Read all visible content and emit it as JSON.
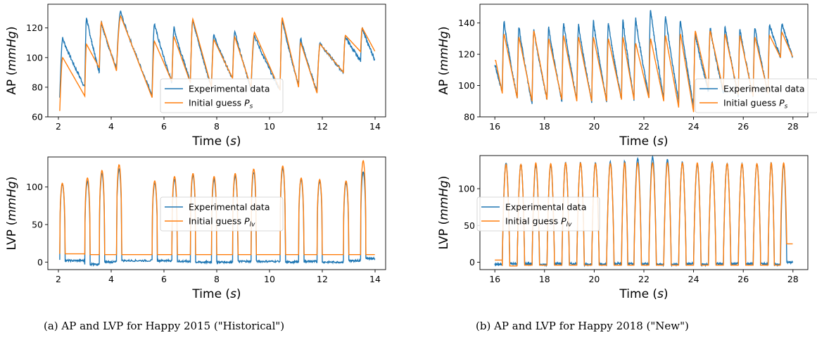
{
  "captions": {
    "a": "(a) AP and LVP for Happy 2015 (\"Historical\")",
    "b": "(b) AP and LVP for Happy 2018 (\"New\")"
  },
  "colors": {
    "experimental": "#1f77b4",
    "initial_guess": "#ff7f0e",
    "axes": "#000000"
  },
  "chart_data": [
    {
      "id": "ap_2015",
      "type": "line",
      "ylabel": "AP",
      "ylabel_unit": "mmHg",
      "xlabel": "Time",
      "xlabel_unit": "s",
      "xlim": [
        1.6,
        14.4
      ],
      "ylim": [
        60,
        136
      ],
      "xticks": [
        2,
        4,
        6,
        8,
        10,
        12,
        14
      ],
      "yticks": [
        60,
        80,
        100,
        120
      ],
      "legend": {
        "placement": "lower-right",
        "entries": [
          "Experimental data",
          "Initial guess P_s"
        ],
        "label_text": "Initial guess ",
        "label_var": "P",
        "label_sub": "s"
      },
      "beats": {
        "onset_times": [
          2.05,
          3.0,
          3.55,
          4.2,
          5.55,
          6.3,
          7.0,
          7.8,
          8.6,
          9.3,
          10.4,
          11.1,
          11.8,
          12.8,
          13.45
        ],
        "end_time": 14.0,
        "exp_systolic": [
          113,
          127,
          124,
          131,
          123,
          120,
          126,
          115,
          118,
          115,
          126,
          113,
          110,
          114,
          120
        ],
        "exp_diastolic": [
          73,
          80,
          90,
          92,
          75,
          83,
          84,
          80,
          86,
          79,
          78,
          81,
          77,
          90,
          98
        ],
        "init_systolic": [
          100,
          109,
          124,
          128,
          111,
          114,
          126,
          112,
          114,
          117,
          127,
          110,
          109,
          115,
          120
        ],
        "init_diastolic": [
          64,
          74,
          93,
          91,
          73,
          84,
          83,
          80,
          86,
          80,
          78,
          80,
          76,
          90,
          104
        ]
      }
    },
    {
      "id": "lvp_2015",
      "type": "line",
      "ylabel": "LVP",
      "ylabel_unit": "mmHg",
      "xlabel": "Time",
      "xlabel_unit": "s",
      "xlim": [
        1.6,
        14.4
      ],
      "ylim": [
        -10,
        140
      ],
      "xticks": [
        2,
        4,
        6,
        8,
        10,
        12,
        14
      ],
      "yticks": [
        0,
        50,
        100
      ],
      "legend": {
        "placement": "center-right",
        "entries": [
          "Experimental data",
          "Initial guess P_lv"
        ],
        "label_text": "Initial guess ",
        "label_var": "P",
        "label_sub": "lv"
      },
      "beats": {
        "onset_times": [
          2.05,
          3.0,
          3.55,
          4.2,
          5.55,
          6.3,
          7.0,
          7.8,
          8.6,
          9.3,
          10.4,
          11.1,
          11.8,
          12.8,
          13.45
        ],
        "end_time": 14.0,
        "exp_systolic": [
          104,
          108,
          118,
          124,
          105,
          110,
          115,
          110,
          115,
          120,
          125,
          110,
          108,
          105,
          120
        ],
        "exp_diastolic": [
          2,
          -3,
          0,
          2,
          2,
          1,
          0,
          0,
          1,
          1,
          0,
          1,
          0,
          2,
          5
        ],
        "init_systolic": [
          105,
          112,
          122,
          130,
          108,
          114,
          118,
          114,
          118,
          124,
          128,
          112,
          110,
          108,
          135
        ],
        "init_diastolic": [
          11,
          10,
          10,
          10,
          10,
          10,
          10,
          10,
          10,
          10,
          10,
          10,
          10,
          10,
          10
        ]
      }
    },
    {
      "id": "ap_2018",
      "type": "line",
      "ylabel": "AP",
      "ylabel_unit": "mmHg",
      "xlabel": "Time",
      "xlabel_unit": "s",
      "xlim": [
        15.4,
        28.6
      ],
      "ylim": [
        80,
        152
      ],
      "xticks": [
        16,
        18,
        20,
        22,
        24,
        26,
        28
      ],
      "yticks": [
        80,
        100,
        120,
        140
      ],
      "legend": {
        "placement": "lower-right",
        "entries": [
          "Experimental data",
          "Initial guess P_s"
        ],
        "label_text": "Initial guess ",
        "label_var": "P",
        "label_sub": "s"
      },
      "beats": {
        "onset_times": [
          16.0,
          16.3,
          16.9,
          17.5,
          18.1,
          18.7,
          19.3,
          19.9,
          20.5,
          21.1,
          21.6,
          22.2,
          22.8,
          23.4,
          24.0,
          24.6,
          25.2,
          25.8,
          26.4,
          27.0,
          27.5
        ],
        "end_time": 28.0,
        "exp_systolic": [
          112,
          141,
          138,
          136,
          137,
          140,
          139,
          141,
          140,
          142,
          143,
          149,
          145,
          142,
          133,
          137,
          138,
          136,
          137,
          139,
          140
        ],
        "exp_diastolic": [
          112,
          96,
          92,
          88,
          91,
          90,
          91,
          90,
          90,
          91,
          91,
          93,
          91,
          90,
          86,
          96,
          95,
          93,
          93,
          95,
          118
        ],
        "init_systolic": [
          116,
          133,
          131,
          135,
          130,
          132,
          131,
          131,
          130,
          131,
          127,
          130,
          132,
          133,
          135,
          135,
          133,
          132,
          131,
          132,
          134
        ],
        "init_diastolic": [
          116,
          95,
          92,
          90,
          91,
          91,
          90,
          90,
          90,
          91,
          91,
          92,
          90,
          86,
          83,
          98,
          97,
          94,
          93,
          95,
          118
        ]
      }
    },
    {
      "id": "lvp_2018",
      "type": "line",
      "ylabel": "LVP",
      "ylabel_unit": "mmHg",
      "xlabel": "Time",
      "xlabel_unit": "s",
      "xlim": [
        15.4,
        28.6
      ],
      "ylim": [
        -10,
        145
      ],
      "xticks": [
        16,
        18,
        20,
        22,
        24,
        26,
        28
      ],
      "yticks": [
        0,
        50,
        100
      ],
      "legend": {
        "placement": "center-left",
        "entries": [
          "Experimental data",
          "Initial guess P_lv"
        ],
        "label_text": "Initial guess ",
        "label_var": "P",
        "label_sub": "lv"
      },
      "beats": {
        "onset_times": [
          16.0,
          16.3,
          16.9,
          17.5,
          18.1,
          18.7,
          19.3,
          19.9,
          20.5,
          21.1,
          21.6,
          22.2,
          22.8,
          23.4,
          24.0,
          24.6,
          25.2,
          25.8,
          26.4,
          27.0,
          27.5
        ],
        "end_time": 28.0,
        "exp_systolic": [
          -3,
          135,
          133,
          132,
          132,
          135,
          135,
          135,
          136,
          138,
          142,
          143,
          140,
          136,
          133,
          135,
          134,
          134,
          134,
          135,
          133
        ],
        "exp_diastolic": [
          -3,
          -2,
          -2,
          -3,
          -2,
          -2,
          -3,
          -3,
          -2,
          -2,
          -2,
          -3,
          -3,
          -2,
          -3,
          -2,
          -2,
          -2,
          -2,
          -3,
          0
        ],
        "init_systolic": [
          3,
          133,
          133,
          135,
          134,
          135,
          135,
          134,
          134,
          135,
          135,
          135,
          135,
          135,
          135,
          135,
          134,
          134,
          134,
          135,
          135
        ],
        "init_diastolic": [
          3,
          -5,
          -4,
          -4,
          -4,
          -4,
          -4,
          -4,
          -4,
          -4,
          -4,
          -4,
          -4,
          -4,
          -4,
          -4,
          -4,
          -4,
          -4,
          -4,
          25
        ]
      }
    }
  ]
}
